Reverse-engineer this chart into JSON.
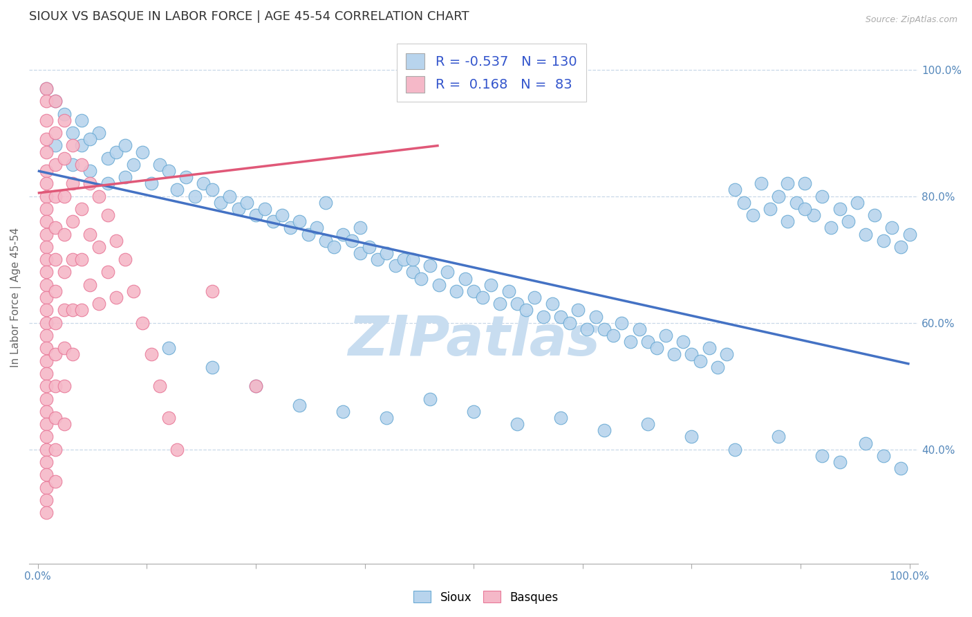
{
  "title": "SIOUX VS BASQUE IN LABOR FORCE | AGE 45-54 CORRELATION CHART",
  "source_text": "Source: ZipAtlas.com",
  "ylabel": "In Labor Force | Age 45-54",
  "xlim": [
    -0.01,
    1.01
  ],
  "ylim": [
    0.22,
    1.06
  ],
  "ytick_values": [
    0.4,
    0.6,
    0.8,
    1.0
  ],
  "ytick_labels": [
    "40.0%",
    "60.0%",
    "80.0%",
    "100.0%"
  ],
  "xtick_values": [
    0.0,
    1.0
  ],
  "xtick_labels": [
    "0.0%",
    "100.0%"
  ],
  "R_sioux": -0.537,
  "N_sioux": 130,
  "R_basque": 0.168,
  "N_basque": 83,
  "sioux_fill": "#b8d4ed",
  "sioux_edge": "#6aaad4",
  "basque_fill": "#f5b8c8",
  "basque_edge": "#e87898",
  "sioux_line_color": "#4472c4",
  "basque_line_color": "#e05878",
  "legend_box_sioux": "#b8d4ed",
  "legend_box_basque": "#f5b8c8",
  "watermark_text": "ZIPatlas",
  "watermark_color": "#c8ddf0",
  "background_color": "#ffffff",
  "grid_color": "#c8d8e8",
  "title_fontsize": 13,
  "tick_color": "#5588bb",
  "label_color": "#666666",
  "sioux_line_start_y": 0.84,
  "sioux_line_end_y": 0.535,
  "basque_line_start_x": 0.0,
  "basque_line_end_x": 0.46,
  "basque_line_start_y": 0.805,
  "basque_line_end_y": 0.88,
  "sioux_dots": [
    [
      0.01,
      0.97
    ],
    [
      0.02,
      0.95
    ],
    [
      0.03,
      0.93
    ],
    [
      0.04,
      0.9
    ],
    [
      0.05,
      0.88
    ],
    [
      0.02,
      0.88
    ],
    [
      0.04,
      0.85
    ],
    [
      0.06,
      0.84
    ],
    [
      0.05,
      0.92
    ],
    [
      0.07,
      0.9
    ],
    [
      0.08,
      0.86
    ],
    [
      0.09,
      0.87
    ],
    [
      0.06,
      0.89
    ],
    [
      0.1,
      0.88
    ],
    [
      0.08,
      0.82
    ],
    [
      0.11,
      0.85
    ],
    [
      0.12,
      0.87
    ],
    [
      0.1,
      0.83
    ],
    [
      0.14,
      0.85
    ],
    [
      0.13,
      0.82
    ],
    [
      0.15,
      0.84
    ],
    [
      0.16,
      0.81
    ],
    [
      0.17,
      0.83
    ],
    [
      0.18,
      0.8
    ],
    [
      0.19,
      0.82
    ],
    [
      0.2,
      0.81
    ],
    [
      0.21,
      0.79
    ],
    [
      0.22,
      0.8
    ],
    [
      0.23,
      0.78
    ],
    [
      0.24,
      0.79
    ],
    [
      0.25,
      0.77
    ],
    [
      0.26,
      0.78
    ],
    [
      0.27,
      0.76
    ],
    [
      0.28,
      0.77
    ],
    [
      0.29,
      0.75
    ],
    [
      0.3,
      0.76
    ],
    [
      0.31,
      0.74
    ],
    [
      0.32,
      0.75
    ],
    [
      0.33,
      0.73
    ],
    [
      0.34,
      0.72
    ],
    [
      0.35,
      0.74
    ],
    [
      0.36,
      0.73
    ],
    [
      0.37,
      0.71
    ],
    [
      0.38,
      0.72
    ],
    [
      0.39,
      0.7
    ],
    [
      0.4,
      0.71
    ],
    [
      0.41,
      0.69
    ],
    [
      0.42,
      0.7
    ],
    [
      0.43,
      0.68
    ],
    [
      0.44,
      0.67
    ],
    [
      0.45,
      0.69
    ],
    [
      0.46,
      0.66
    ],
    [
      0.47,
      0.68
    ],
    [
      0.48,
      0.65
    ],
    [
      0.49,
      0.67
    ],
    [
      0.5,
      0.65
    ],
    [
      0.51,
      0.64
    ],
    [
      0.52,
      0.66
    ],
    [
      0.53,
      0.63
    ],
    [
      0.54,
      0.65
    ],
    [
      0.55,
      0.63
    ],
    [
      0.56,
      0.62
    ],
    [
      0.57,
      0.64
    ],
    [
      0.58,
      0.61
    ],
    [
      0.59,
      0.63
    ],
    [
      0.6,
      0.61
    ],
    [
      0.61,
      0.6
    ],
    [
      0.62,
      0.62
    ],
    [
      0.63,
      0.59
    ],
    [
      0.64,
      0.61
    ],
    [
      0.65,
      0.59
    ],
    [
      0.66,
      0.58
    ],
    [
      0.67,
      0.6
    ],
    [
      0.68,
      0.57
    ],
    [
      0.69,
      0.59
    ],
    [
      0.7,
      0.57
    ],
    [
      0.71,
      0.56
    ],
    [
      0.72,
      0.58
    ],
    [
      0.73,
      0.55
    ],
    [
      0.74,
      0.57
    ],
    [
      0.75,
      0.55
    ],
    [
      0.76,
      0.54
    ],
    [
      0.77,
      0.56
    ],
    [
      0.78,
      0.53
    ],
    [
      0.79,
      0.55
    ],
    [
      0.8,
      0.81
    ],
    [
      0.81,
      0.79
    ],
    [
      0.82,
      0.77
    ],
    [
      0.83,
      0.82
    ],
    [
      0.84,
      0.78
    ],
    [
      0.85,
      0.8
    ],
    [
      0.86,
      0.76
    ],
    [
      0.87,
      0.79
    ],
    [
      0.88,
      0.82
    ],
    [
      0.89,
      0.77
    ],
    [
      0.9,
      0.8
    ],
    [
      0.91,
      0.75
    ],
    [
      0.92,
      0.78
    ],
    [
      0.93,
      0.76
    ],
    [
      0.94,
      0.79
    ],
    [
      0.95,
      0.74
    ],
    [
      0.96,
      0.77
    ],
    [
      0.97,
      0.73
    ],
    [
      0.98,
      0.75
    ],
    [
      0.99,
      0.72
    ],
    [
      1.0,
      0.74
    ],
    [
      0.95,
      0.41
    ],
    [
      0.97,
      0.39
    ],
    [
      0.99,
      0.37
    ],
    [
      0.5,
      0.46
    ],
    [
      0.55,
      0.44
    ],
    [
      0.6,
      0.45
    ],
    [
      0.65,
      0.43
    ],
    [
      0.7,
      0.44
    ],
    [
      0.75,
      0.42
    ],
    [
      0.8,
      0.4
    ],
    [
      0.85,
      0.42
    ],
    [
      0.9,
      0.39
    ],
    [
      0.92,
      0.38
    ],
    [
      0.3,
      0.47
    ],
    [
      0.35,
      0.46
    ],
    [
      0.4,
      0.45
    ],
    [
      0.45,
      0.48
    ],
    [
      0.25,
      0.5
    ],
    [
      0.2,
      0.53
    ],
    [
      0.15,
      0.56
    ],
    [
      0.43,
      0.7
    ],
    [
      0.37,
      0.75
    ],
    [
      0.33,
      0.79
    ],
    [
      0.86,
      0.82
    ],
    [
      0.88,
      0.78
    ]
  ],
  "basque_dots": [
    [
      0.01,
      0.97
    ],
    [
      0.01,
      0.95
    ],
    [
      0.01,
      0.92
    ],
    [
      0.01,
      0.89
    ],
    [
      0.01,
      0.87
    ],
    [
      0.01,
      0.84
    ],
    [
      0.01,
      0.82
    ],
    [
      0.01,
      0.8
    ],
    [
      0.01,
      0.78
    ],
    [
      0.01,
      0.76
    ],
    [
      0.01,
      0.74
    ],
    [
      0.01,
      0.72
    ],
    [
      0.01,
      0.7
    ],
    [
      0.01,
      0.68
    ],
    [
      0.01,
      0.66
    ],
    [
      0.01,
      0.64
    ],
    [
      0.01,
      0.62
    ],
    [
      0.01,
      0.6
    ],
    [
      0.01,
      0.58
    ],
    [
      0.01,
      0.56
    ],
    [
      0.01,
      0.54
    ],
    [
      0.01,
      0.52
    ],
    [
      0.01,
      0.5
    ],
    [
      0.01,
      0.48
    ],
    [
      0.01,
      0.46
    ],
    [
      0.01,
      0.44
    ],
    [
      0.01,
      0.42
    ],
    [
      0.01,
      0.4
    ],
    [
      0.01,
      0.38
    ],
    [
      0.01,
      0.36
    ],
    [
      0.01,
      0.34
    ],
    [
      0.01,
      0.32
    ],
    [
      0.01,
      0.3
    ],
    [
      0.02,
      0.95
    ],
    [
      0.02,
      0.9
    ],
    [
      0.02,
      0.85
    ],
    [
      0.02,
      0.8
    ],
    [
      0.02,
      0.75
    ],
    [
      0.02,
      0.7
    ],
    [
      0.02,
      0.65
    ],
    [
      0.02,
      0.6
    ],
    [
      0.02,
      0.55
    ],
    [
      0.02,
      0.5
    ],
    [
      0.02,
      0.45
    ],
    [
      0.02,
      0.4
    ],
    [
      0.02,
      0.35
    ],
    [
      0.03,
      0.92
    ],
    [
      0.03,
      0.86
    ],
    [
      0.03,
      0.8
    ],
    [
      0.03,
      0.74
    ],
    [
      0.03,
      0.68
    ],
    [
      0.03,
      0.62
    ],
    [
      0.03,
      0.56
    ],
    [
      0.03,
      0.5
    ],
    [
      0.03,
      0.44
    ],
    [
      0.04,
      0.88
    ],
    [
      0.04,
      0.82
    ],
    [
      0.04,
      0.76
    ],
    [
      0.04,
      0.7
    ],
    [
      0.04,
      0.62
    ],
    [
      0.04,
      0.55
    ],
    [
      0.05,
      0.85
    ],
    [
      0.05,
      0.78
    ],
    [
      0.05,
      0.7
    ],
    [
      0.05,
      0.62
    ],
    [
      0.06,
      0.82
    ],
    [
      0.06,
      0.74
    ],
    [
      0.06,
      0.66
    ],
    [
      0.07,
      0.8
    ],
    [
      0.07,
      0.72
    ],
    [
      0.07,
      0.63
    ],
    [
      0.08,
      0.77
    ],
    [
      0.08,
      0.68
    ],
    [
      0.09,
      0.73
    ],
    [
      0.09,
      0.64
    ],
    [
      0.1,
      0.7
    ],
    [
      0.11,
      0.65
    ],
    [
      0.12,
      0.6
    ],
    [
      0.13,
      0.55
    ],
    [
      0.14,
      0.5
    ],
    [
      0.15,
      0.45
    ],
    [
      0.16,
      0.4
    ],
    [
      0.2,
      0.65
    ],
    [
      0.25,
      0.5
    ]
  ]
}
